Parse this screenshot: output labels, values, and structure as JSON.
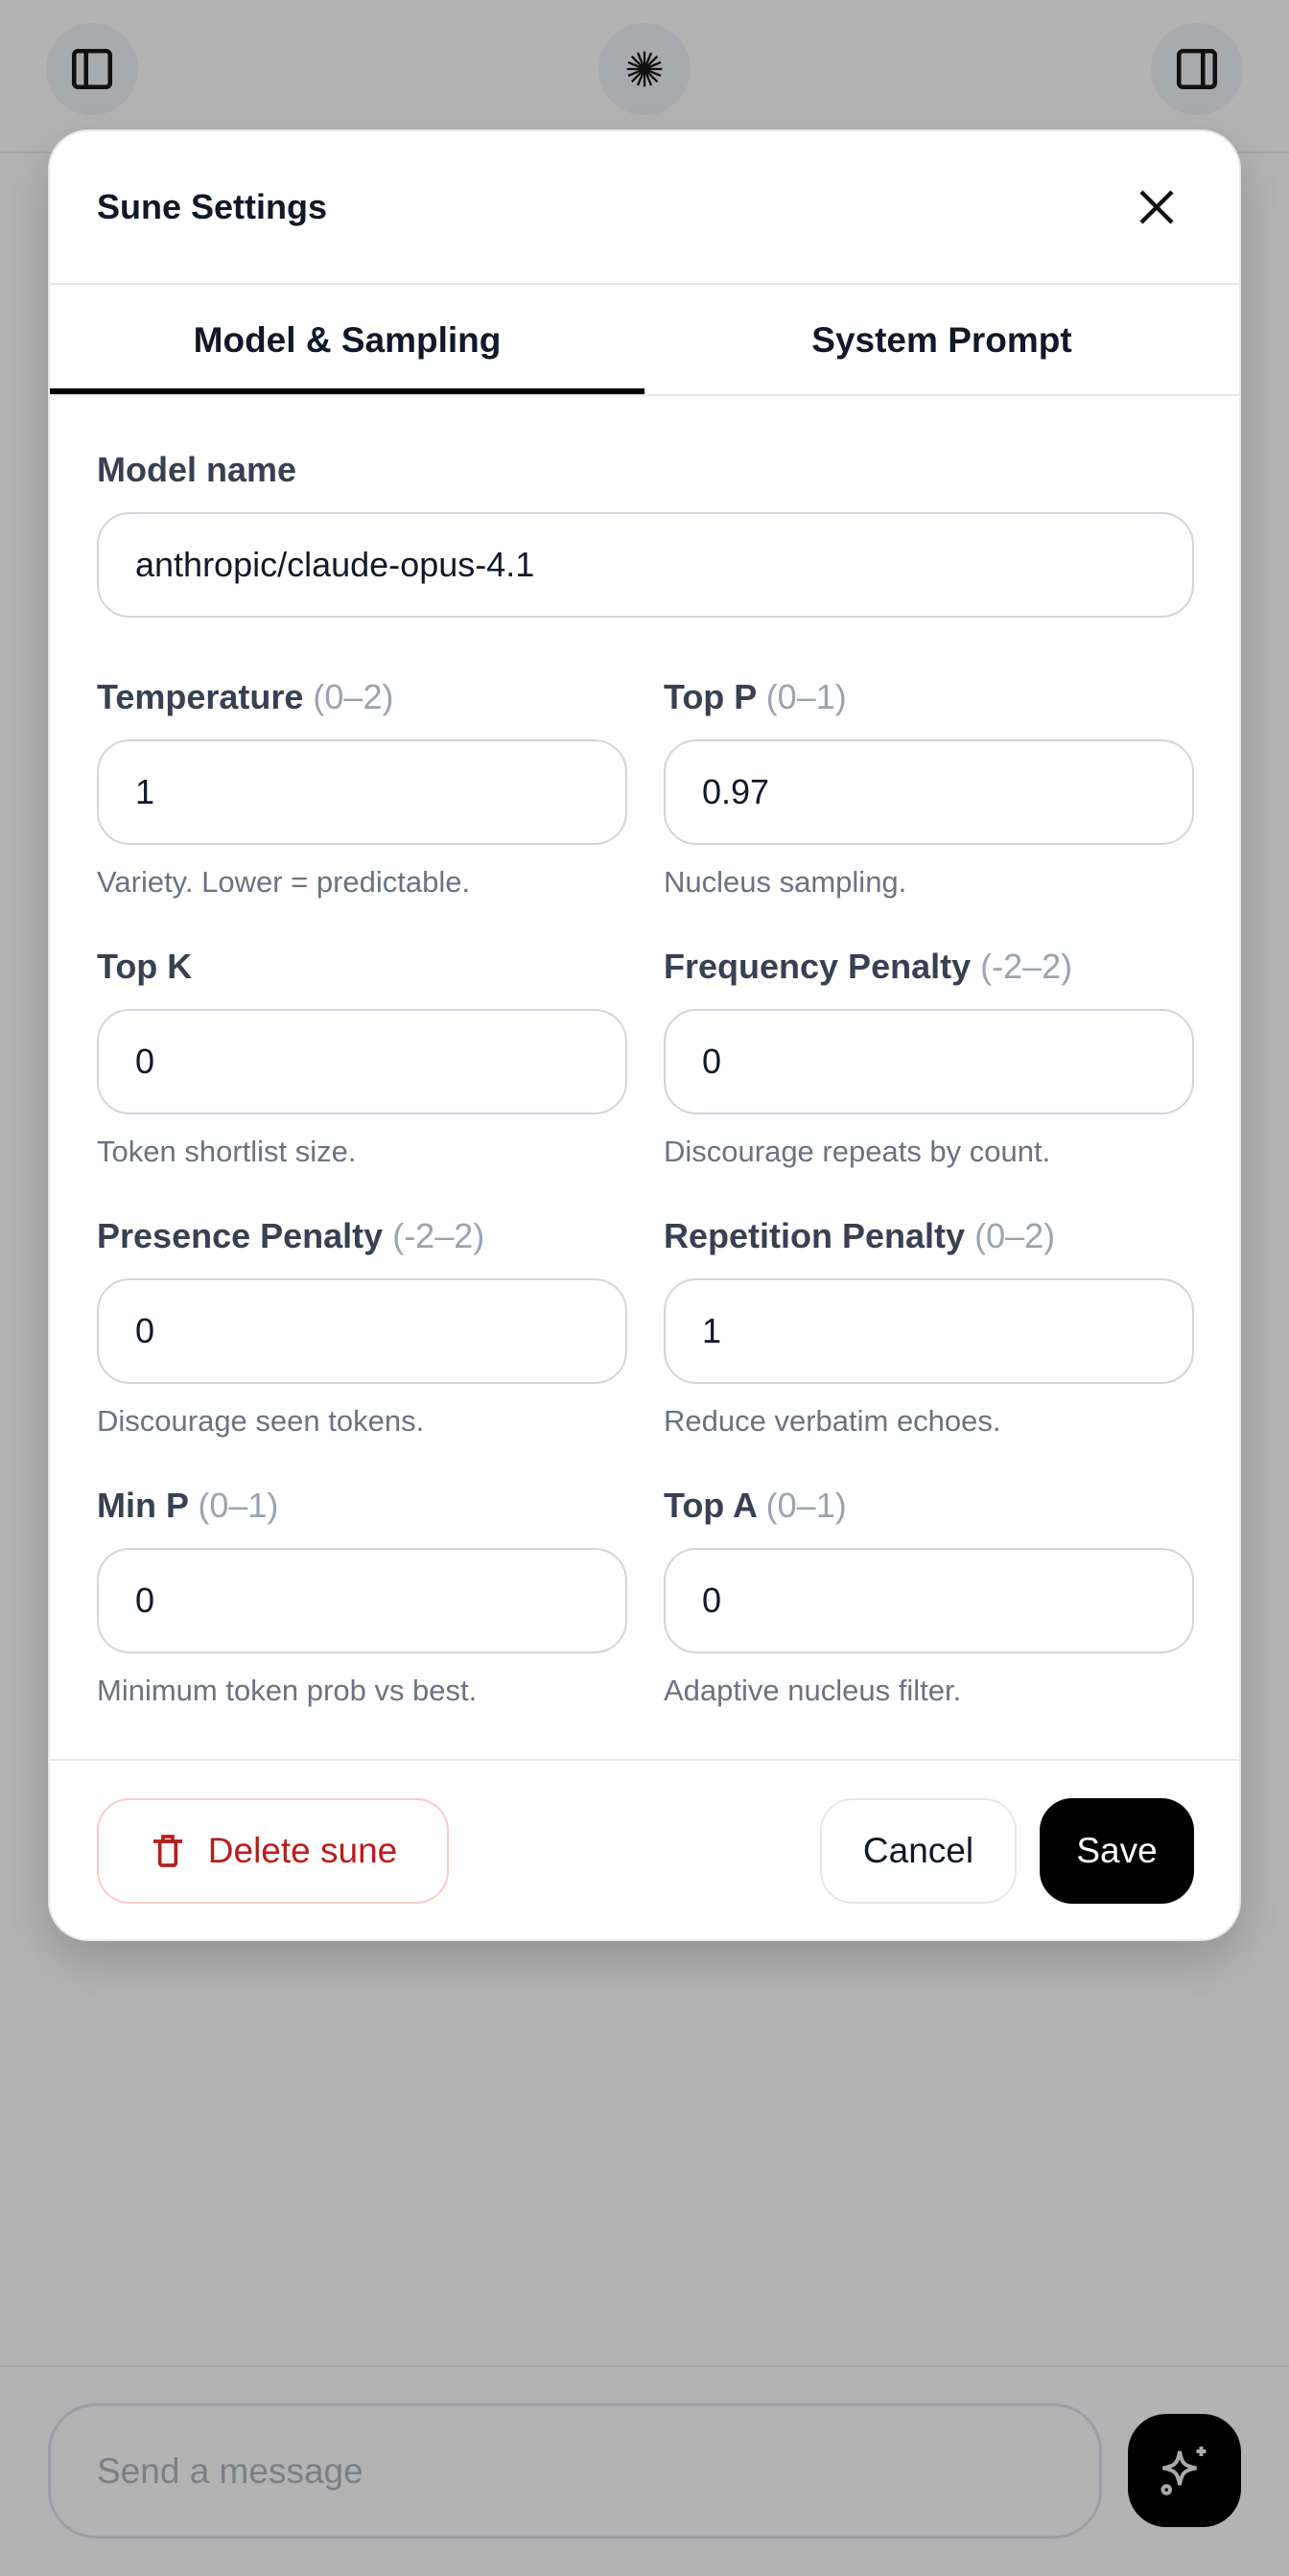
{
  "modal": {
    "title": "Sune Settings",
    "tabs": [
      {
        "label": "Model & Sampling",
        "active": true
      },
      {
        "label": "System Prompt",
        "active": false
      }
    ],
    "model_name": {
      "label": "Model name",
      "value": "anthropic/claude-opus-4.1"
    },
    "fields": [
      {
        "label": "Temperature",
        "range": "(0–2)",
        "value": "1",
        "help": "Variety. Lower = predictable."
      },
      {
        "label": "Top P",
        "range": "(0–1)",
        "value": "0.97",
        "help": "Nucleus sampling."
      },
      {
        "label": "Top K",
        "range": "",
        "value": "0",
        "help": "Token shortlist size."
      },
      {
        "label": "Frequency Penalty",
        "range": "(-2–2)",
        "value": "0",
        "help": "Discourage repeats by count."
      },
      {
        "label": "Presence Penalty",
        "range": "(-2–2)",
        "value": "0",
        "help": "Discourage seen tokens."
      },
      {
        "label": "Repetition Penalty",
        "range": "(0–2)",
        "value": "1",
        "help": "Reduce verbatim echoes."
      },
      {
        "label": "Min P",
        "range": "(0–1)",
        "value": "0",
        "help": "Minimum token prob vs best."
      },
      {
        "label": "Top A",
        "range": "(0–1)",
        "value": "0",
        "help": "Adaptive nucleus filter."
      }
    ],
    "footer": {
      "delete_label": "Delete sune",
      "cancel_label": "Cancel",
      "save_label": "Save"
    }
  },
  "composer": {
    "placeholder": "Send a message"
  },
  "colors": {
    "danger": "#b91c1c",
    "primary": "#000000",
    "overlay": "#b3b3b3"
  }
}
